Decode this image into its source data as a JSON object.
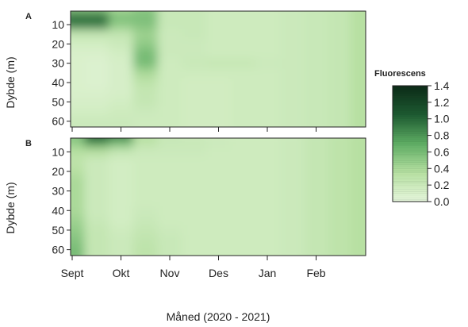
{
  "chart_data": {
    "type": "heatmap",
    "xlabel": "Måned (2020 - 2021)",
    "x_tick_labels": [
      "Sept",
      "Okt",
      "Nov",
      "Des",
      "Jan",
      "Feb"
    ],
    "colorbar": {
      "title": "Fluorescens",
      "range": [
        0.0,
        1.4
      ],
      "ticks": [
        "0.0",
        "0.2",
        "0.4",
        "0.6",
        "0.8",
        "1.0",
        "1.2",
        "1.4"
      ],
      "colors": [
        "#e6f6dc",
        "#b7e0a2",
        "#5fae64",
        "#1d5a31",
        "#0b2a17"
      ]
    },
    "panels": [
      {
        "label": "A",
        "ylabel": "Dybde (m)",
        "y_tick_labels": [
          "10",
          "20",
          "30",
          "40",
          "50",
          "60"
        ],
        "ylim": [
          63,
          3
        ],
        "months": [
          0,
          0.5,
          1,
          1.5,
          2,
          2.5,
          3,
          3.5,
          4,
          4.5,
          5,
          5.5,
          5.9
        ],
        "depths": [
          3,
          5,
          10,
          15,
          20,
          25,
          30,
          35,
          40,
          45,
          50,
          55,
          60,
          63
        ],
        "values": [
          [
            0.55,
            1.0,
            0.9,
            0.25,
            0.15,
            0.1,
            0.1,
            0.1,
            0.1,
            0.1,
            0.12,
            0.15,
            0.2,
            0.2
          ],
          [
            0.55,
            1.0,
            0.9,
            0.25,
            0.15,
            0.1,
            0.08,
            0.08,
            0.08,
            0.1,
            0.12,
            0.15,
            0.2,
            0.2
          ],
          [
            0.4,
            0.6,
            0.5,
            0.25,
            0.2,
            0.15,
            0.12,
            0.12,
            0.12,
            0.12,
            0.15,
            0.18,
            0.2,
            0.2
          ],
          [
            0.5,
            0.6,
            0.55,
            0.45,
            0.5,
            0.6,
            0.6,
            0.4,
            0.3,
            0.25,
            0.25,
            0.2,
            0.18,
            0.18
          ],
          [
            0.22,
            0.22,
            0.22,
            0.2,
            0.2,
            0.2,
            0.18,
            0.18,
            0.18,
            0.18,
            0.18,
            0.18,
            0.18,
            0.18
          ],
          [
            0.22,
            0.22,
            0.22,
            0.22,
            0.2,
            0.2,
            0.22,
            0.18,
            0.16,
            0.16,
            0.16,
            0.16,
            0.16,
            0.16
          ],
          [
            0.18,
            0.18,
            0.18,
            0.18,
            0.18,
            0.18,
            0.24,
            0.18,
            0.16,
            0.16,
            0.16,
            0.16,
            0.16,
            0.16
          ],
          [
            0.18,
            0.18,
            0.18,
            0.18,
            0.18,
            0.18,
            0.24,
            0.18,
            0.18,
            0.18,
            0.18,
            0.18,
            0.18,
            0.18
          ],
          [
            0.18,
            0.18,
            0.18,
            0.18,
            0.18,
            0.18,
            0.2,
            0.18,
            0.18,
            0.18,
            0.18,
            0.18,
            0.18,
            0.18
          ],
          [
            0.2,
            0.2,
            0.2,
            0.2,
            0.2,
            0.2,
            0.2,
            0.2,
            0.2,
            0.2,
            0.2,
            0.2,
            0.2,
            0.2
          ],
          [
            0.22,
            0.22,
            0.22,
            0.22,
            0.22,
            0.22,
            0.22,
            0.22,
            0.22,
            0.22,
            0.22,
            0.22,
            0.22,
            0.22
          ],
          [
            0.25,
            0.25,
            0.25,
            0.25,
            0.25,
            0.25,
            0.25,
            0.25,
            0.25,
            0.25,
            0.25,
            0.25,
            0.25,
            0.25
          ],
          [
            0.35,
            0.35,
            0.35,
            0.35,
            0.35,
            0.35,
            0.35,
            0.35,
            0.35,
            0.35,
            0.35,
            0.35,
            0.35,
            0.35
          ]
        ]
      },
      {
        "label": "B",
        "ylabel": "Dybde (m)",
        "y_tick_labels": [
          "10",
          "20",
          "30",
          "40",
          "50",
          "60"
        ],
        "ylim": [
          63,
          3
        ],
        "months": [
          0,
          0.5,
          1,
          1.5,
          2,
          2.5,
          3,
          3.5,
          4,
          4.5,
          5,
          5.5,
          5.9
        ],
        "depths": [
          3,
          5,
          10,
          15,
          20,
          25,
          30,
          35,
          40,
          45,
          50,
          55,
          60,
          63
        ],
        "values": [
          [
            0.55,
            0.5,
            0.35,
            0.3,
            0.35,
            0.4,
            0.4,
            0.4,
            0.4,
            0.45,
            0.5,
            0.55,
            0.6,
            0.6
          ],
          [
            1.05,
            0.8,
            0.35,
            0.2,
            0.2,
            0.2,
            0.2,
            0.2,
            0.2,
            0.22,
            0.25,
            0.25,
            0.25,
            0.25
          ],
          [
            0.9,
            0.6,
            0.25,
            0.15,
            0.15,
            0.15,
            0.15,
            0.15,
            0.15,
            0.15,
            0.18,
            0.2,
            0.2,
            0.2
          ],
          [
            0.35,
            0.3,
            0.2,
            0.18,
            0.18,
            0.18,
            0.18,
            0.18,
            0.2,
            0.22,
            0.25,
            0.28,
            0.3,
            0.3
          ],
          [
            0.22,
            0.22,
            0.2,
            0.18,
            0.18,
            0.18,
            0.18,
            0.18,
            0.18,
            0.18,
            0.2,
            0.22,
            0.22,
            0.22
          ],
          [
            0.2,
            0.22,
            0.2,
            0.18,
            0.18,
            0.18,
            0.18,
            0.18,
            0.18,
            0.18,
            0.18,
            0.18,
            0.18,
            0.18
          ],
          [
            0.18,
            0.2,
            0.18,
            0.18,
            0.18,
            0.18,
            0.18,
            0.18,
            0.18,
            0.18,
            0.18,
            0.18,
            0.18,
            0.18
          ],
          [
            0.18,
            0.18,
            0.18,
            0.18,
            0.18,
            0.18,
            0.18,
            0.18,
            0.18,
            0.18,
            0.18,
            0.18,
            0.18,
            0.18
          ],
          [
            0.18,
            0.18,
            0.18,
            0.18,
            0.18,
            0.18,
            0.18,
            0.18,
            0.18,
            0.18,
            0.18,
            0.18,
            0.18,
            0.18
          ],
          [
            0.2,
            0.2,
            0.2,
            0.2,
            0.2,
            0.2,
            0.2,
            0.2,
            0.2,
            0.2,
            0.2,
            0.2,
            0.2,
            0.2
          ],
          [
            0.25,
            0.25,
            0.25,
            0.25,
            0.25,
            0.25,
            0.25,
            0.25,
            0.25,
            0.25,
            0.25,
            0.25,
            0.25,
            0.25
          ],
          [
            0.3,
            0.3,
            0.3,
            0.3,
            0.3,
            0.3,
            0.3,
            0.3,
            0.3,
            0.3,
            0.3,
            0.3,
            0.3,
            0.3
          ],
          [
            0.35,
            0.35,
            0.35,
            0.35,
            0.35,
            0.35,
            0.35,
            0.35,
            0.35,
            0.35,
            0.35,
            0.35,
            0.35,
            0.35
          ]
        ]
      }
    ]
  }
}
